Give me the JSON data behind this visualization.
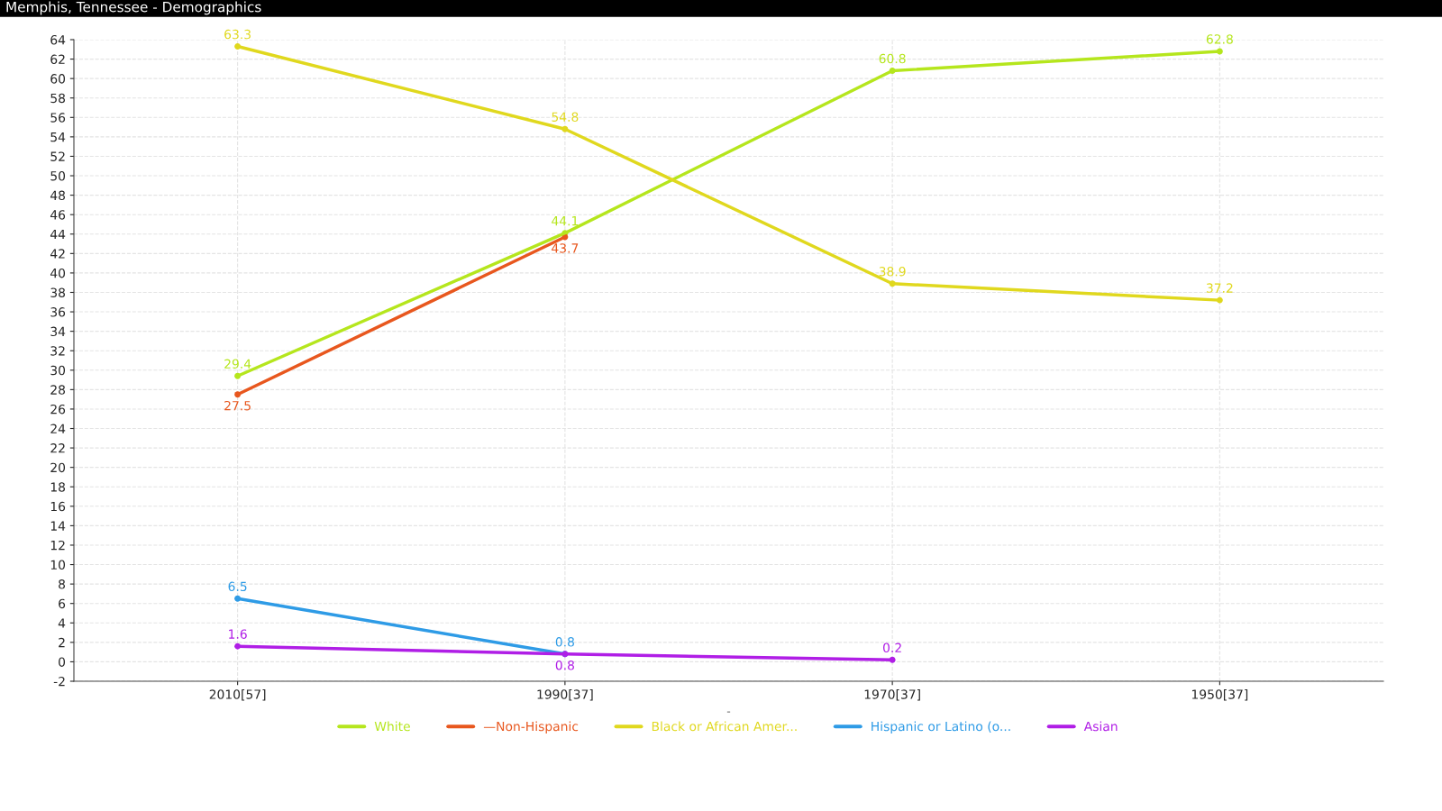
{
  "chart_data": {
    "type": "line",
    "title": "Memphis, Tennessee - Demographics",
    "xlabel": "-",
    "categories": [
      "2010[57]",
      "1990[37]",
      "1970[37]",
      "1950[37]"
    ],
    "series": [
      {
        "name": "White",
        "color": "#b5e61d",
        "values": [
          29.4,
          44.1,
          60.8,
          62.8
        ]
      },
      {
        "name": "—Non-Hispanic",
        "color": "#e8571e",
        "values": [
          27.5,
          43.7,
          null,
          null
        ]
      },
      {
        "name": "Black or African Amer...",
        "color": "#e0d81e",
        "values": [
          63.3,
          54.8,
          38.9,
          37.2
        ]
      },
      {
        "name": "Hispanic or Latino (o...",
        "color": "#2e9be6",
        "values": [
          6.5,
          0.8,
          null,
          null
        ]
      },
      {
        "name": "Asian",
        "color": "#b01ee6",
        "values": [
          1.6,
          0.8,
          0.2,
          null
        ]
      }
    ],
    "ylim": [
      -2,
      64
    ],
    "yticks": [
      -2,
      0,
      2,
      4,
      6,
      8,
      10,
      12,
      14,
      16,
      18,
      20,
      22,
      24,
      26,
      28,
      30,
      32,
      34,
      36,
      38,
      40,
      42,
      44,
      46,
      48,
      50,
      52,
      54,
      56,
      58,
      60,
      62,
      64
    ],
    "data_labels": true,
    "grid": true,
    "legend": "bottom",
    "marker": "circle",
    "line_style": "solid"
  }
}
